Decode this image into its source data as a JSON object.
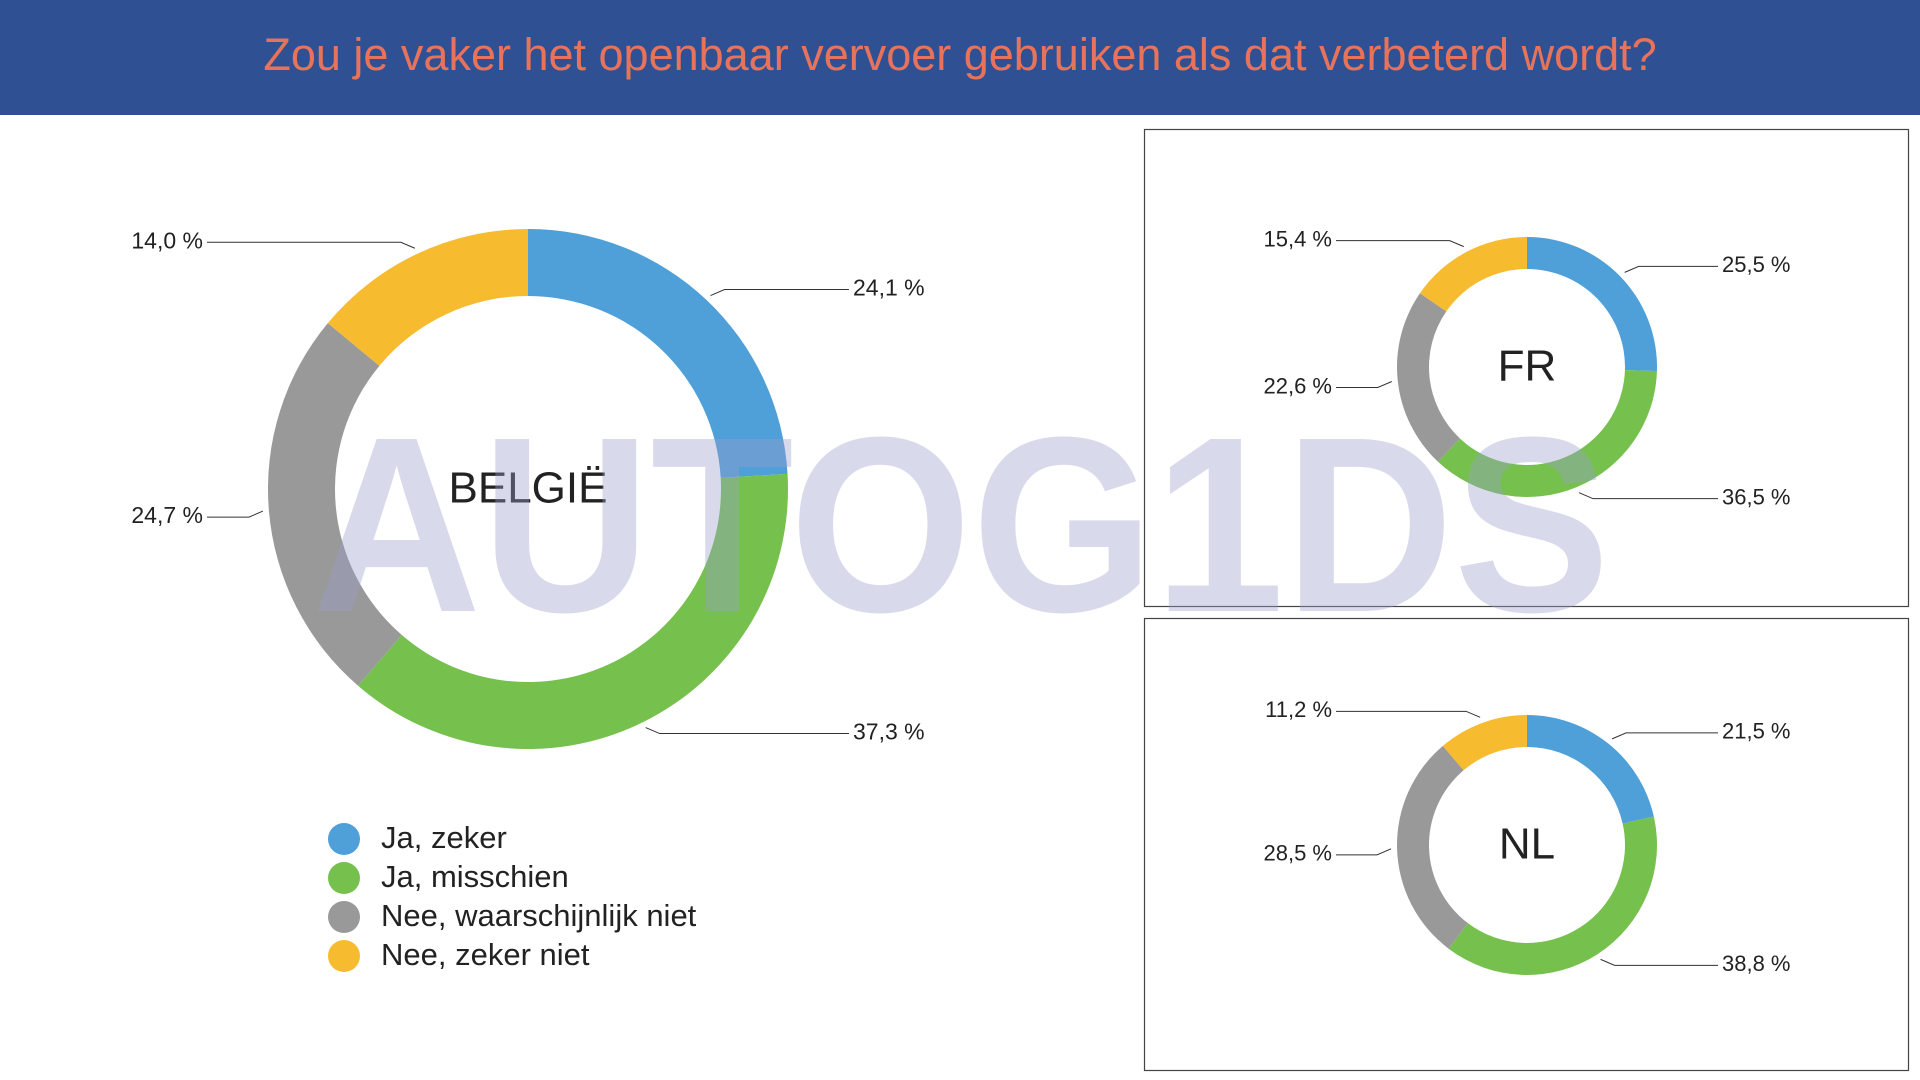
{
  "title": "Zou je vaker het openbaar vervoer gebruiken als dat verbeterd wordt?",
  "watermark": "AUTOG1DS",
  "chart_data": [
    {
      "type": "donut",
      "label": "BELGIË",
      "categories": [
        "Ja, zeker",
        "Ja, misschien",
        "Nee, waarschijnlijk niet",
        "Nee, zeker niet"
      ],
      "values": [
        24.1,
        37.3,
        24.7,
        14.0
      ],
      "value_labels": [
        "24,1 %",
        "37,3 %",
        "24,7 %",
        "14,0 %"
      ],
      "colors": [
        "#4f9fd8",
        "#76c04e",
        "#999999",
        "#f6bb2f"
      ]
    },
    {
      "type": "donut",
      "label": "FR",
      "values": [
        25.5,
        36.5,
        22.6,
        15.4
      ],
      "value_labels": [
        "25,5 %",
        "36,5 %",
        "22,6 %",
        "15,4 %"
      ],
      "colors": [
        "#4f9fd8",
        "#76c04e",
        "#999999",
        "#f6bb2f"
      ]
    },
    {
      "type": "donut",
      "label": "NL",
      "values": [
        21.5,
        38.8,
        28.5,
        11.2
      ],
      "value_labels": [
        "21,5 %",
        "38,8 %",
        "28,5 %",
        "11,2 %"
      ],
      "colors": [
        "#4f9fd8",
        "#76c04e",
        "#999999",
        "#f6bb2f"
      ]
    }
  ]
}
